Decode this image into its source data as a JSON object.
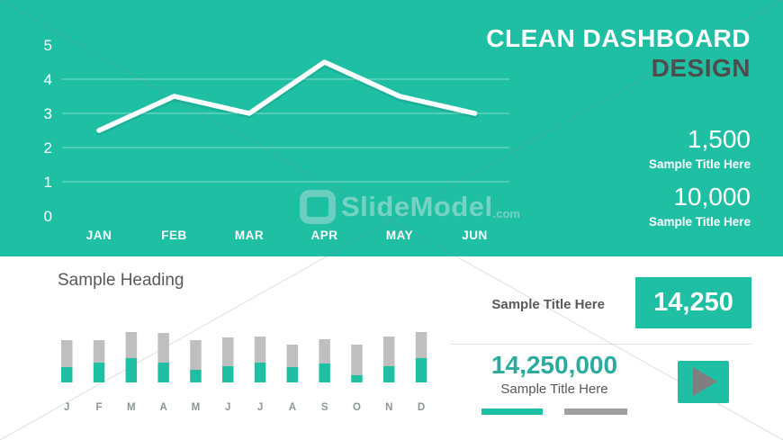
{
  "hero": {
    "title_line1": "CLEAN DASHBOARD",
    "title_line2": "DESIGN",
    "stats": [
      {
        "value": "1,500",
        "label": "Sample Title Here"
      },
      {
        "value": "10,000",
        "label": "Sample Title Here"
      }
    ]
  },
  "lower": {
    "heading": "Sample Heading",
    "kpi_row": {
      "label": "Sample Title Here",
      "value": "14,250"
    },
    "kpi_block": {
      "value": "14,250,000",
      "label": "Sample Title Here"
    }
  },
  "watermark": {
    "text": "SlideModel",
    "suffix": ".com"
  },
  "icons": {
    "play_button": "right-pointing-triangle",
    "watermark_logo": "rounded-square-outline"
  },
  "colors": {
    "accent_teal": "#1fbfa4",
    "kpi_number_teal": "#2bab9d",
    "bar_gray": "#bfbfbf",
    "legend_gray": "#a0a0a0",
    "text_dark_gray": "#595959",
    "design_title_gray": "#4d4d4d",
    "line_white": "#ffffff",
    "play_triangle_gray": "#7f7f7f"
  },
  "chart_data": [
    {
      "type": "line",
      "title": "",
      "x": [
        "JAN",
        "FEB",
        "MAR",
        "APR",
        "MAY",
        "JUN"
      ],
      "values": [
        2.5,
        3.5,
        3.0,
        4.5,
        3.5,
        3.0
      ],
      "ylim": [
        0,
        5
      ],
      "yticks": [
        5,
        4,
        3,
        2,
        1,
        0
      ],
      "gridlines": [
        4,
        3,
        2,
        1
      ],
      "grid_on": true,
      "legend_position": "none",
      "line_color": "#ffffff",
      "background": "#1fbfa4"
    },
    {
      "type": "bar",
      "subtype": "stacked",
      "title": "",
      "categories": [
        "J",
        "F",
        "M",
        "A",
        "M",
        "J",
        "J",
        "A",
        "S",
        "O",
        "N",
        "D"
      ],
      "series": [
        {
          "name": "filled-accent",
          "color": "#1fbfa4",
          "values": [
            17,
            22,
            27,
            22,
            14,
            18,
            22,
            17,
            21,
            8,
            18,
            27
          ]
        },
        {
          "name": "remainder-gray",
          "color": "#bfbfbf",
          "values": [
            30,
            25,
            29,
            33,
            33,
            32,
            29,
            25,
            27,
            34,
            33,
            29
          ]
        }
      ],
      "units": "relative (pixel-estimated, no axis shown)",
      "ylim": [
        0,
        60
      ],
      "grid_on": false,
      "legend_position": "none"
    }
  ]
}
